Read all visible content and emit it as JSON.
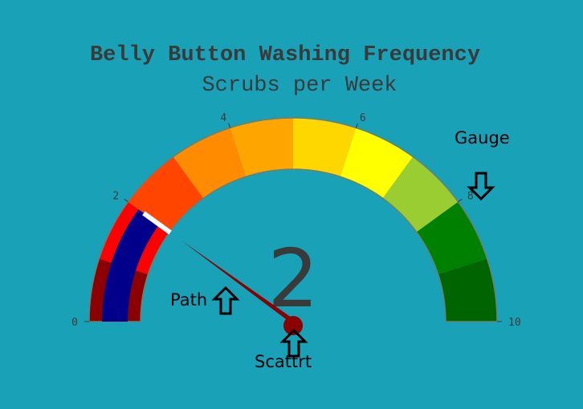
{
  "chart_data": {
    "type": "gauge",
    "title": "Belly Button Washing Frequency",
    "subtitle": "Scrubs per Week",
    "value": 2,
    "value_display": "2",
    "range": [
      0,
      10
    ],
    "tick_labels": [
      "0",
      "2",
      "4",
      "6",
      "8",
      "10"
    ],
    "tick_values": [
      0,
      2,
      4,
      6,
      8,
      10
    ],
    "bands": [
      {
        "from": 0,
        "to": 1,
        "color": "#8b0000"
      },
      {
        "from": 1,
        "to": 2,
        "color": "#ff0000"
      },
      {
        "from": 2,
        "to": 3,
        "color": "#ff4500"
      },
      {
        "from": 3,
        "to": 4,
        "color": "#ff8c00"
      },
      {
        "from": 4,
        "to": 5,
        "color": "#ffa500"
      },
      {
        "from": 5,
        "to": 6,
        "color": "#ffd700"
      },
      {
        "from": 6,
        "to": 7,
        "color": "#ffff00"
      },
      {
        "from": 7,
        "to": 8,
        "color": "#9acd32"
      },
      {
        "from": 8,
        "to": 9,
        "color": "#008000"
      },
      {
        "from": 9,
        "to": 10,
        "color": "#006400"
      }
    ],
    "value_bar_color": "#00008b",
    "threshold_value": 2,
    "threshold_color": "#ffffff",
    "needle_color": "#8b0000",
    "background_color": "#19a1b8"
  },
  "annotations": [
    {
      "id": "gauge",
      "text": "Gauge",
      "arrow": "down"
    },
    {
      "id": "path",
      "text": "Path",
      "arrow": "up"
    },
    {
      "id": "scatter",
      "text": "Scattrt",
      "arrow": "up"
    }
  ]
}
